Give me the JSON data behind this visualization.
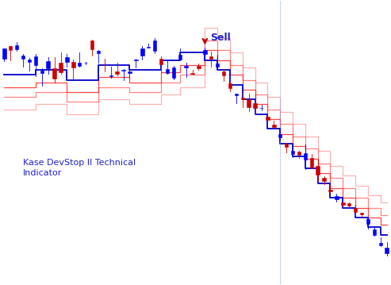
{
  "title_line1": "Kase DevStop II Technical",
  "title_line2": "Indicator",
  "sell_label": "Sell",
  "background_color": "#ffffff",
  "candle_up_color": "#0000ff",
  "candle_down_color": "#cc0000",
  "stop_line_color": "#0000cc",
  "dev_line_colors": [
    "#ff3333",
    "#ff7777",
    "#ffaaaa"
  ],
  "text_color_blue": "#2222cc",
  "text_color_red": "#cc0000",
  "n_candles": 62,
  "sell_candle": 32
}
